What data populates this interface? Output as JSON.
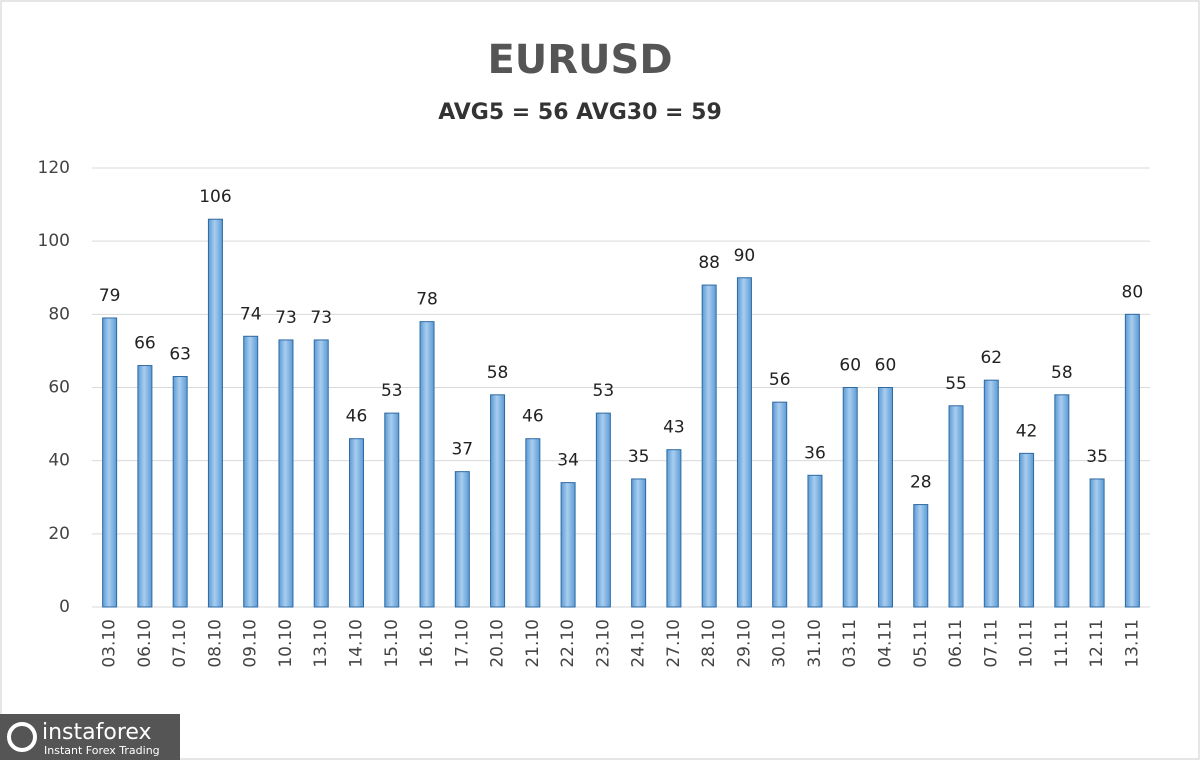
{
  "chart_data": {
    "type": "bar",
    "title": "EURUSD",
    "subtitle": "AVG5 = 56 AVG30 = 59",
    "categories": [
      "03.10",
      "06.10",
      "07.10",
      "08.10",
      "09.10",
      "10.10",
      "13.10",
      "14.10",
      "15.10",
      "16.10",
      "17.10",
      "20.10",
      "21.10",
      "22.10",
      "23.10",
      "24.10",
      "27.10",
      "28.10",
      "29.10",
      "30.10",
      "31.10",
      "03.11",
      "04.11",
      "05.11",
      "06.11",
      "07.11",
      "10.11",
      "11.11",
      "12.11",
      "13.11"
    ],
    "values": [
      79,
      66,
      63,
      106,
      74,
      73,
      73,
      46,
      53,
      78,
      37,
      58,
      46,
      34,
      53,
      35,
      43,
      88,
      90,
      56,
      36,
      60,
      60,
      28,
      55,
      62,
      42,
      58,
      35,
      80
    ],
    "color": "#5b9bd5",
    "ylim": [
      0,
      120
    ],
    "yticks": [
      0,
      20,
      40,
      60,
      80,
      100,
      120
    ],
    "grid": true
  },
  "logo": {
    "brand": "instaforex",
    "tagline": "Instant Forex Trading"
  }
}
